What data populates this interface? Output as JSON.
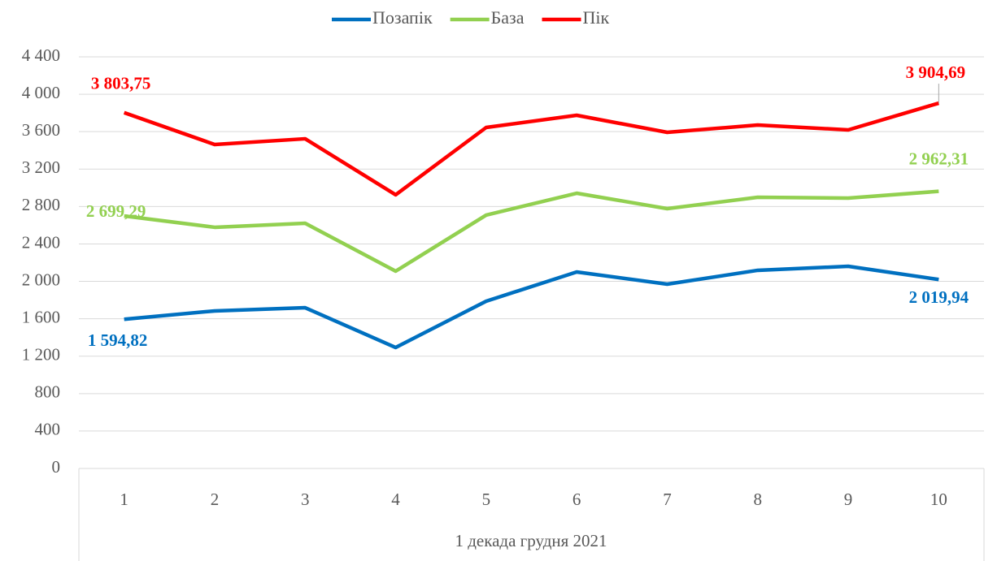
{
  "chart_data": {
    "type": "line",
    "x_label": "1 декада грудня 2021",
    "categories": [
      "1",
      "2",
      "3",
      "4",
      "5",
      "6",
      "7",
      "8",
      "9",
      "10"
    ],
    "series": [
      {
        "name": "Позапік",
        "color": "#0070c0",
        "values": [
          1594.82,
          1684,
          1718,
          1293,
          1788,
          2100,
          1970,
          2118,
          2161,
          2019.94
        ],
        "value_labels": [
          "1 594,82",
          null,
          null,
          null,
          null,
          null,
          null,
          null,
          null,
          "2 019,94"
        ]
      },
      {
        "name": "База",
        "color": "#92d050",
        "values": [
          2699.29,
          2578,
          2621,
          2109,
          2708,
          2942,
          2777,
          2899,
          2890,
          2962.31
        ],
        "value_labels": [
          "2 699,29",
          null,
          null,
          null,
          null,
          null,
          null,
          null,
          null,
          "2 962,31"
        ]
      },
      {
        "name": "Пік",
        "color": "#ff0000",
        "values": [
          3803.75,
          3463,
          3524,
          2925,
          3645,
          3775,
          3593,
          3671,
          3619,
          3904.69
        ],
        "value_labels": [
          "3 803,75",
          null,
          null,
          null,
          null,
          null,
          null,
          null,
          null,
          "3 904,69"
        ]
      }
    ],
    "ylim": [
      0,
      4400
    ],
    "yticks": [
      0,
      400,
      800,
      {
        "value": 1200,
        "label": "1 200"
      },
      {
        "value": 1600,
        "label": "1 600"
      },
      {
        "value": 2000,
        "label": "2 000"
      },
      {
        "value": 2400,
        "label": "2 400"
      },
      {
        "value": 2800,
        "label": "2 800"
      },
      {
        "value": 3200,
        "label": "3 200"
      },
      {
        "value": 3600,
        "label": "3 600"
      },
      {
        "value": 4000,
        "label": "4 000"
      },
      {
        "value": 4400,
        "label": "4 400"
      }
    ],
    "grid": true,
    "legend": "top"
  }
}
